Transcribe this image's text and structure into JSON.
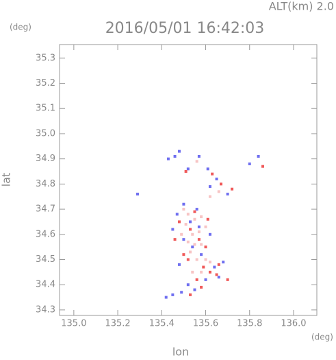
{
  "chart_data": {
    "type": "scatter",
    "title": "2016/05/01 16:42:03",
    "subtitle": "ALT(km) 2.0",
    "y_unit": "(deg)",
    "x_unit": "(deg)",
    "xlabel": "lon",
    "ylabel": "lat",
    "xlim": [
      134.935,
      136.106
    ],
    "ylim": [
      34.278,
      35.354
    ],
    "xticks": [
      {
        "value": 135.0,
        "label": "135.0"
      },
      135.2,
      135.4,
      135.6,
      135.8,
      {
        "value": 136.0,
        "label": "136.0"
      }
    ],
    "yticks": [
      34.3,
      34.4,
      34.5,
      34.6,
      34.7,
      34.8,
      34.9,
      {
        "value": 35.0,
        "label": "35.0"
      },
      35.1,
      35.2,
      35.3
    ],
    "series": [
      {
        "color": "#f7c4c4",
        "x": [
          135.5,
          135.52,
          135.55,
          135.58,
          135.51,
          135.54,
          135.57,
          135.6,
          135.49,
          135.52,
          135.55,
          135.58,
          135.53,
          135.56,
          135.6,
          135.58,
          135.62,
          135.54,
          135.62,
          135.66,
          135.56
        ],
        "values": [
          34.7,
          34.68,
          34.66,
          34.67,
          34.64,
          34.6,
          34.61,
          34.63,
          34.6,
          34.57,
          34.56,
          34.56,
          34.53,
          34.5,
          34.5,
          34.45,
          34.49,
          34.45,
          34.75,
          34.77,
          34.89
        ]
      },
      {
        "color": "#6f6ff0",
        "x": [
          135.48,
          135.46,
          135.43,
          135.52,
          135.57,
          135.61,
          135.65,
          135.84,
          135.8,
          135.29,
          135.47,
          135.45,
          135.5,
          135.54,
          135.48,
          135.62,
          135.58,
          135.64,
          135.66,
          135.6,
          135.52,
          135.49,
          135.45,
          135.42,
          135.55,
          135.53,
          135.57,
          135.68,
          135.7,
          135.62,
          135.5,
          135.56
        ],
        "values": [
          34.93,
          34.91,
          34.9,
          34.86,
          34.91,
          34.86,
          34.82,
          34.91,
          34.88,
          34.76,
          34.68,
          34.62,
          34.58,
          34.55,
          34.48,
          34.6,
          34.52,
          34.47,
          34.43,
          34.42,
          34.4,
          34.37,
          34.36,
          34.35,
          34.38,
          34.65,
          34.63,
          34.49,
          34.76,
          34.79,
          34.72,
          34.7
        ]
      },
      {
        "color": "#f05a5a",
        "x": [
          135.51,
          135.67,
          135.72,
          135.86,
          135.63,
          135.55,
          135.53,
          135.57,
          135.6,
          135.5,
          135.59,
          135.62,
          135.65,
          135.56,
          135.58,
          135.53,
          135.48,
          135.52,
          135.66,
          135.61,
          135.46,
          135.7
        ],
        "values": [
          34.85,
          34.8,
          34.78,
          34.87,
          34.84,
          34.69,
          34.62,
          34.58,
          34.55,
          34.52,
          34.47,
          34.45,
          34.44,
          34.42,
          34.39,
          34.36,
          34.65,
          34.5,
          34.48,
          34.66,
          34.58,
          34.42
        ]
      }
    ]
  }
}
